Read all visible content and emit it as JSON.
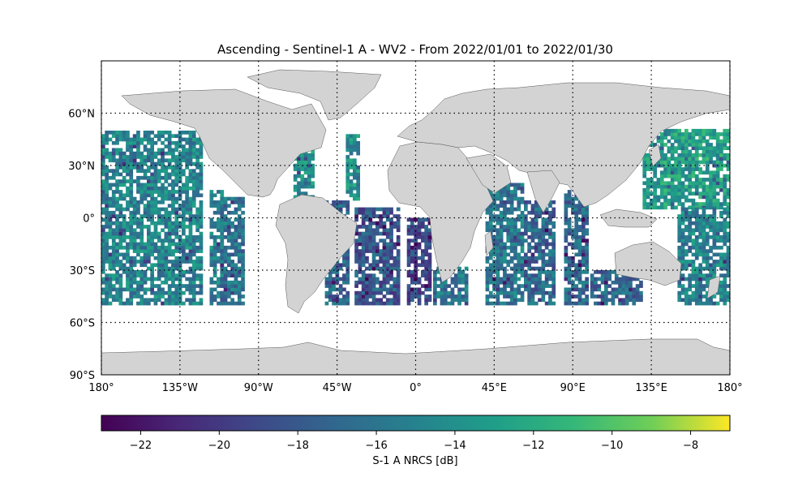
{
  "title": "Ascending - Sentinel-1 A - WV2 - From 2022/01/01 to 2022/01/30",
  "map": {
    "lat_ticks": [
      {
        "value": 60,
        "label": "60°N"
      },
      {
        "value": 30,
        "label": "30°N"
      },
      {
        "value": 0,
        "label": "0°"
      },
      {
        "value": -30,
        "label": "30°S"
      },
      {
        "value": -60,
        "label": "60°S"
      },
      {
        "value": -90,
        "label": "90°S"
      }
    ],
    "lon_ticks": [
      {
        "value": -180,
        "label": "180°"
      },
      {
        "value": -135,
        "label": "135°W"
      },
      {
        "value": -90,
        "label": "90°W"
      },
      {
        "value": -45,
        "label": "45°W"
      },
      {
        "value": 0,
        "label": "0°"
      },
      {
        "value": 45,
        "label": "45°E"
      },
      {
        "value": 90,
        "label": "90°E"
      },
      {
        "value": 135,
        "label": "135°E"
      },
      {
        "value": 180,
        "label": "180°"
      }
    ],
    "extent": {
      "lon": [
        -180,
        180
      ],
      "lat": [
        -90,
        90
      ]
    },
    "gridlines": "dotted",
    "land_color": "#d3d3d3",
    "coast_color": "#555555"
  },
  "colorbar": {
    "label": "S-1 A NRCS [dB]",
    "range": [
      -23,
      -7
    ],
    "ticks": [
      {
        "value": -22,
        "label": "−22"
      },
      {
        "value": -20,
        "label": "−20"
      },
      {
        "value": -18,
        "label": "−18"
      },
      {
        "value": -16,
        "label": "−16"
      },
      {
        "value": -14,
        "label": "−14"
      },
      {
        "value": -12,
        "label": "−12"
      },
      {
        "value": -10,
        "label": "−10"
      },
      {
        "value": -8,
        "label": "−8"
      }
    ],
    "colormap": "viridis"
  },
  "chart_data": {
    "type": "heatmap",
    "description_of_content": "",
    "value_unit": "dB",
    "swaths": [
      {
        "lon": [
          -180,
          -123
        ],
        "lat": [
          -50,
          50
        ],
        "mean": -15
      },
      {
        "lon": [
          -118,
          -110
        ],
        "lat": [
          -50,
          15
        ],
        "mean": -15
      },
      {
        "lon": [
          -112,
          -98
        ],
        "lat": [
          -50,
          12
        ],
        "mean": -16
      },
      {
        "lon": [
          -70,
          -58
        ],
        "lat": [
          5,
          45
        ],
        "mean": -14
      },
      {
        "lon": [
          -52,
          -38
        ],
        "lat": [
          -50,
          10
        ],
        "mean": -17
      },
      {
        "lon": [
          -35,
          -10
        ],
        "lat": [
          -50,
          5
        ],
        "mean": -18
      },
      {
        "lon": [
          -40,
          -32
        ],
        "lat": [
          10,
          48
        ],
        "mean": -14
      },
      {
        "lon": [
          -5,
          8
        ],
        "lat": [
          -50,
          0
        ],
        "mean": -19
      },
      {
        "lon": [
          10,
          30
        ],
        "lat": [
          -50,
          -28
        ],
        "mean": -16
      },
      {
        "lon": [
          40,
          62
        ],
        "lat": [
          -50,
          20
        ],
        "mean": -16
      },
      {
        "lon": [
          62,
          80
        ],
        "lat": [
          -50,
          10
        ],
        "mean": -17
      },
      {
        "lon": [
          85,
          98
        ],
        "lat": [
          -50,
          15
        ],
        "mean": -17
      },
      {
        "lon": [
          100,
          130
        ],
        "lat": [
          -50,
          -30
        ],
        "mean": -17
      },
      {
        "lon": [
          130,
          180
        ],
        "lat": [
          5,
          50
        ],
        "mean": -13
      },
      {
        "lon": [
          150,
          180
        ],
        "lat": [
          -50,
          5
        ],
        "mean": -15
      }
    ]
  }
}
